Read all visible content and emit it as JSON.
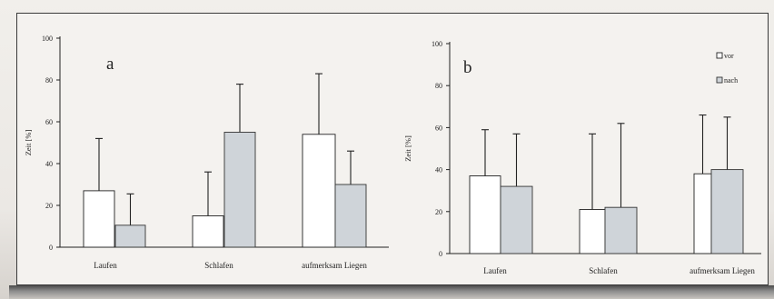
{
  "chart_data": [
    {
      "type": "bar",
      "panel_label": "a",
      "categories": [
        "Laufen",
        "Schlafen",
        "aufmerksam Liegen"
      ],
      "ylabel": "Zeit [%]",
      "ylim": [
        0,
        100
      ],
      "yticks": [
        0,
        20,
        40,
        60,
        80,
        100
      ],
      "series": [
        {
          "values": [
            27,
            15,
            54
          ],
          "errors": [
            25,
            21,
            29
          ],
          "color": "#ffffff"
        },
        {
          "values": [
            10.5,
            55,
            30
          ],
          "errors": [
            15,
            23,
            16
          ],
          "color": "#cfd4d9"
        }
      ],
      "grid": false
    },
    {
      "type": "bar",
      "panel_label": "b",
      "categories": [
        "Laufen",
        "Schlafen",
        "aufmerksam Liegen"
      ],
      "ylabel": "Zeit [%]",
      "ylim": [
        0,
        100
      ],
      "yticks": [
        0,
        20,
        40,
        60,
        80,
        100
      ],
      "series": [
        {
          "name": "vor",
          "values": [
            37,
            21,
            38
          ],
          "errors": [
            22,
            36,
            28
          ],
          "color": "#ffffff"
        },
        {
          "name": "nach",
          "values": [
            32,
            22,
            40
          ],
          "errors": [
            25,
            40,
            25
          ],
          "color": "#cfd4d9"
        }
      ],
      "legend": "top-right",
      "grid": false
    }
  ]
}
